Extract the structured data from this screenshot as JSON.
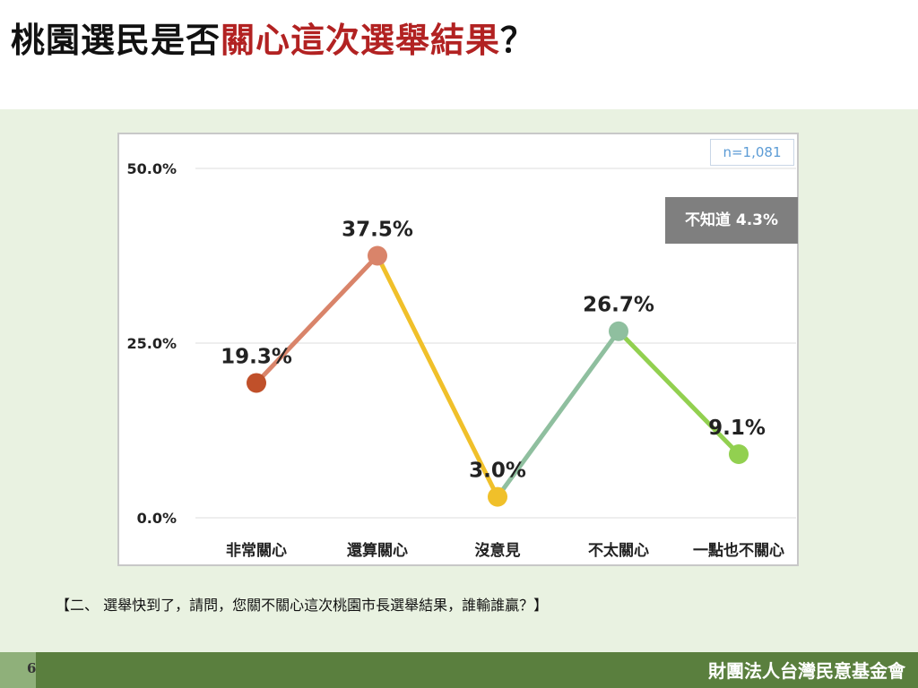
{
  "page": {
    "title_part1": "桃園選民是否",
    "title_highlight": "關心這次選舉結果",
    "title_part2": "？",
    "question": "【二、 選舉快到了，請問，您關不關心這次桃園市長選舉結果，誰輸誰贏？】",
    "page_number": "6",
    "organization": "財團法人台灣民意基金會",
    "highlight_color": "#b22222"
  },
  "chart_data": {
    "type": "line",
    "categories": [
      "非常關心",
      "還算關心",
      "沒意見",
      "不太關心",
      "一點也不關心"
    ],
    "values": [
      19.3,
      37.5,
      3.0,
      26.7,
      9.1
    ],
    "value_labels": [
      "19.3%",
      "37.5%",
      "3.0%",
      "26.7%",
      "9.1%"
    ],
    "point_colors": [
      "#c0502a",
      "#d9846a",
      "#f0c02a",
      "#8fbf9f",
      "#92d050"
    ],
    "segment_colors": [
      "#d9846a",
      "#f0c02a",
      "#8fbf9f",
      "#92d050"
    ],
    "yticks": [
      "0.0%",
      "25.0%",
      "50.0%"
    ],
    "ytick_values": [
      0,
      25,
      50
    ],
    "ylim": [
      0,
      50
    ],
    "grid": true,
    "sample_note": "n=1,081",
    "dont_know_note": "不知道 4.3%"
  }
}
